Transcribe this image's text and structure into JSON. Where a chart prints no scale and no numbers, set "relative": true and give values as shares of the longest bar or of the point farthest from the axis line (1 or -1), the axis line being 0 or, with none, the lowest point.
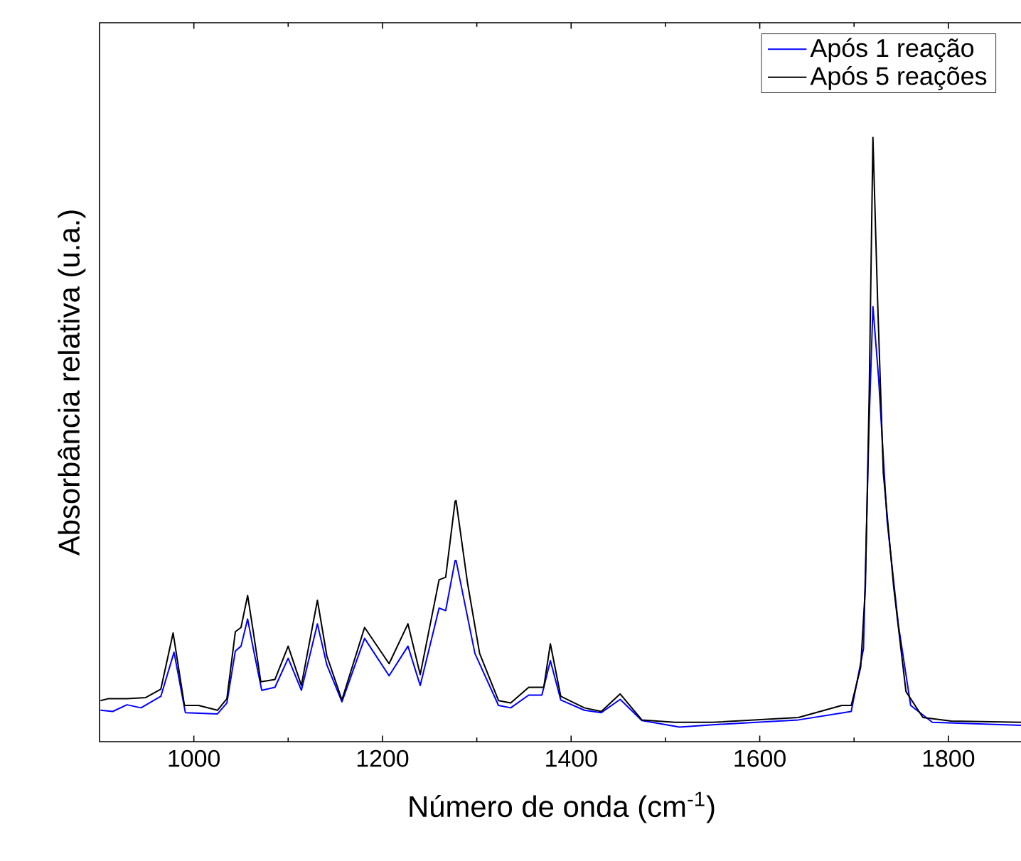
{
  "chart_data": {
    "type": "line",
    "relative": true,
    "xlabel": "Número de onda (cm$^{-1}$)",
    "ylabel": "Absorbância relativa (u.a.)",
    "xlim": [
      900,
      1880
    ],
    "xticks": [
      1000,
      1200,
      1400,
      1600,
      1800
    ],
    "tick_labels": "x",
    "grid": false,
    "legend": "top right",
    "marker": "none",
    "line_style": "solid",
    "series": [
      {
        "name": "Após 1 reação",
        "color": "#0000ff",
        "x": [
          901,
          914,
          929,
          944,
          965,
          979,
          991,
          1025,
          1035,
          1044,
          1050,
          1057,
          1063,
          1072,
          1086,
          1100,
          1114,
          1131,
          1141,
          1157,
          1181,
          1207,
          1227,
          1240,
          1260,
          1267,
          1277,
          1278,
          1298,
          1323,
          1336,
          1355,
          1369,
          1378,
          1389,
          1414,
          1432,
          1452,
          1475,
          1515,
          1550,
          1641,
          1697,
          1710,
          1716,
          1720,
          1726,
          1735,
          1747,
          1760,
          1783,
          1880
        ],
        "values": [
          0.052,
          0.05,
          0.061,
          0.056,
          0.075,
          0.148,
          0.048,
          0.046,
          0.064,
          0.15,
          0.158,
          0.203,
          0.154,
          0.085,
          0.09,
          0.138,
          0.085,
          0.195,
          0.127,
          0.066,
          0.171,
          0.109,
          0.158,
          0.093,
          0.221,
          0.217,
          0.3,
          0.3,
          0.146,
          0.06,
          0.056,
          0.077,
          0.077,
          0.134,
          0.069,
          0.052,
          0.048,
          0.07,
          0.035,
          0.024,
          0.028,
          0.036,
          0.05,
          0.154,
          0.531,
          0.72,
          0.602,
          0.366,
          0.193,
          0.06,
          0.032,
          0.027
        ]
      },
      {
        "name": "Após 5 reações",
        "color": "#000000",
        "x": [
          901,
          909,
          929,
          949,
          965,
          978,
          990,
          1005,
          1025,
          1035,
          1044,
          1050,
          1057,
          1063,
          1071,
          1086,
          1100,
          1114,
          1131,
          1141,
          1157,
          1181,
          1207,
          1227,
          1240,
          1260,
          1267,
          1277,
          1278,
          1290,
          1303,
          1323,
          1336,
          1355,
          1371,
          1378,
          1389,
          1414,
          1432,
          1452,
          1475,
          1510,
          1550,
          1641,
          1687,
          1697,
          1707,
          1712,
          1716,
          1720,
          1725,
          1731,
          1742,
          1755,
          1773,
          1803,
          1880
        ],
        "values": [
          0.068,
          0.071,
          0.071,
          0.073,
          0.087,
          0.18,
          0.06,
          0.06,
          0.052,
          0.071,
          0.182,
          0.189,
          0.242,
          0.182,
          0.099,
          0.103,
          0.158,
          0.093,
          0.234,
          0.142,
          0.069,
          0.189,
          0.129,
          0.195,
          0.111,
          0.268,
          0.272,
          0.398,
          0.399,
          0.264,
          0.146,
          0.068,
          0.064,
          0.09,
          0.09,
          0.162,
          0.075,
          0.056,
          0.05,
          0.079,
          0.036,
          0.032,
          0.032,
          0.04,
          0.06,
          0.06,
          0.123,
          0.256,
          0.571,
          1.0,
          0.728,
          0.445,
          0.256,
          0.083,
          0.04,
          0.034,
          0.032
        ]
      }
    ]
  }
}
